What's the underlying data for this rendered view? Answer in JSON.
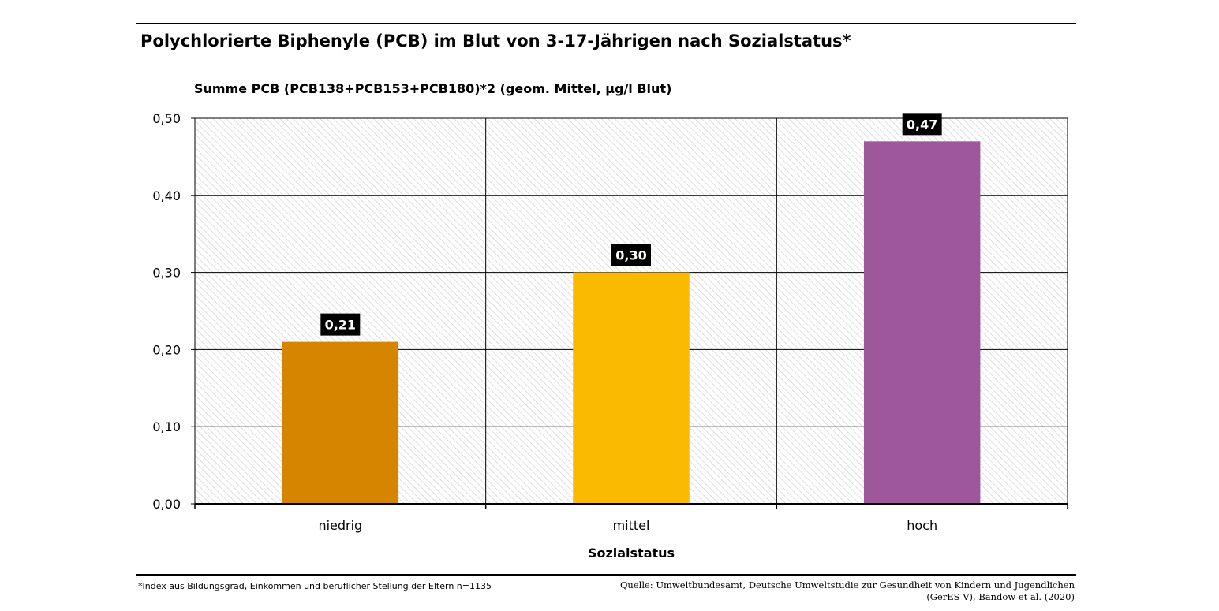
{
  "colors": {
    "niedrig": "#D68500",
    "mittel": "#F9BA00",
    "hoch": "#9D579A",
    "label_bg": "#000000",
    "label_text": "#ffffff",
    "hatch": "#d6d6d6"
  },
  "footnote": "*Index aus Bildungsgrad, Einkommen und beruflicher Stellung der Eltern n=1135",
  "source": {
    "line1": "Quelle: Umweltbundesamt, Deutsche Umweltstudie zur Gesundheit von Kindern und Jugendlichen",
    "line2": "(GerES V), Bandow et al. (2020)"
  },
  "chart_data": {
    "type": "bar",
    "title": "Polychlorierte Biphenyle (PCB) im Blut von 3-17-Jährigen nach Sozialstatus*",
    "ylabel": "Summe PCB (PCB138+PCB153+PCB180)*2 (geom. Mittel, µg/l Blut)",
    "xlabel": "Sozialstatus",
    "categories": [
      "niedrig",
      "mittel",
      "hoch"
    ],
    "values": [
      0.21,
      0.3,
      0.47
    ],
    "value_labels": [
      "0,21",
      "0,30",
      "0,47"
    ],
    "yticks": [
      0.0,
      0.1,
      0.2,
      0.3,
      0.4,
      0.5
    ],
    "ytick_labels": [
      "0,00",
      "0,10",
      "0,20",
      "0,30",
      "0,40",
      "0,50"
    ],
    "ylim": [
      0,
      0.5
    ],
    "grid": true,
    "legend": false
  }
}
